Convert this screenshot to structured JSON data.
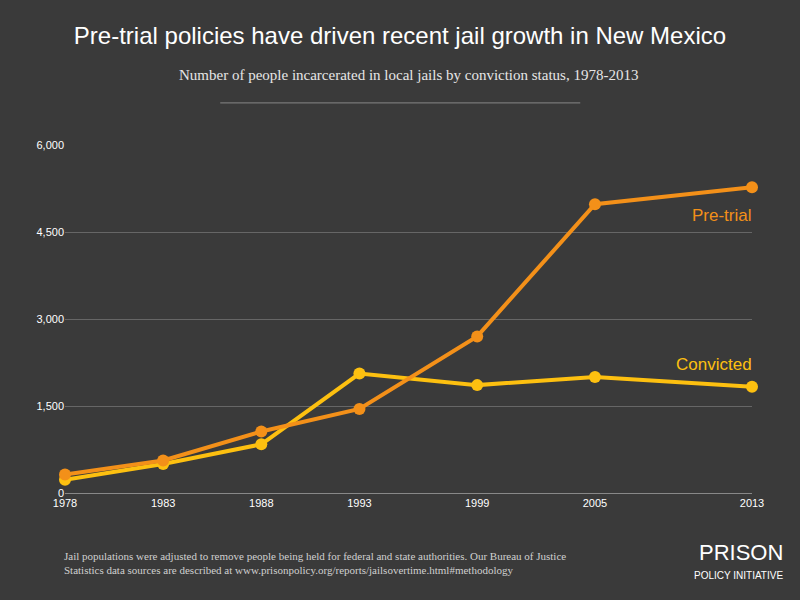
{
  "chart_data": {
    "type": "line",
    "title": "Pre-trial policies have driven recent jail growth in New Mexico",
    "subtitle": "Number of people incarcerated in local jails by conviction status, 1978-2013",
    "x": [
      1978,
      1983,
      1988,
      1993,
      1999,
      2005,
      2013
    ],
    "series": [
      {
        "name": "Pre-trial",
        "color": "#f39019",
        "values": [
          320,
          560,
          1060,
          1450,
          2700,
          4980,
          5270
        ]
      },
      {
        "name": "Convicted",
        "color": "#fdc010",
        "values": [
          230,
          500,
          840,
          2060,
          1860,
          2000,
          1830
        ]
      }
    ],
    "xlim": [
      1978,
      2013
    ],
    "xticks": [
      1978,
      1983,
      1988,
      1993,
      1999,
      2005,
      2013
    ],
    "ylim": [
      0,
      6000
    ],
    "yticks": [
      0,
      {
        "value": 1500,
        "label": "1,500"
      },
      {
        "value": 3000,
        "label": "3,000"
      },
      {
        "value": 4500,
        "label": "4,500"
      },
      {
        "value": 6000,
        "label": "6,000"
      }
    ],
    "grid": true,
    "marker": "circle",
    "footnote": [
      "Jail populations were adjusted to remove people being held for federal and state authorities. Our Bureau of Justice",
      "Statistics data sources are described at www.prisonpolicy.org/reports/jailsovertime.html#methodology"
    ],
    "logo": [
      "PRISON",
      "POLICY INITIATIVE"
    ]
  }
}
